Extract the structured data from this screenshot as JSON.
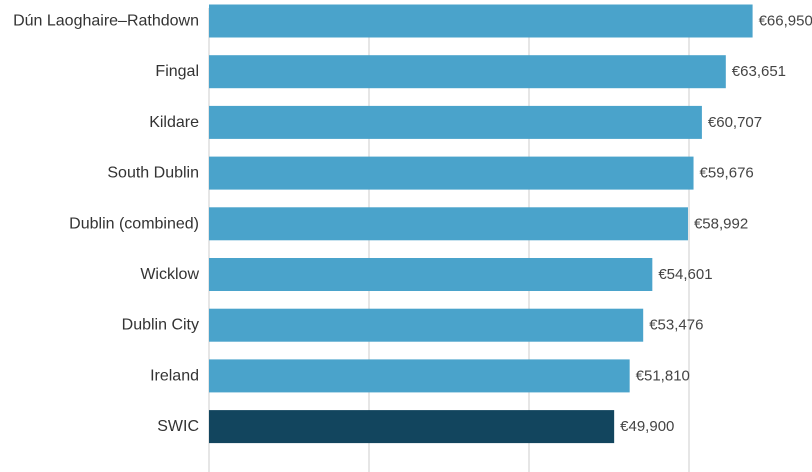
{
  "chart_data": {
    "type": "bar",
    "orientation": "horizontal",
    "categories": [
      "Dún Laoghaire–Rathdown",
      "Fingal",
      "Kildare",
      "South Dublin",
      "Dublin (combined)",
      "Wicklow",
      "Dublin City",
      "Ireland",
      "SWIC"
    ],
    "values": [
      66950,
      63651,
      60707,
      59676,
      58992,
      54601,
      53476,
      51810,
      49900
    ],
    "value_labels": [
      "€66,950",
      "€63,651",
      "€60,707",
      "€59,676",
      "€58,992",
      "€54,601",
      "€53,476",
      "€51,810",
      "€49,900"
    ],
    "title": "",
    "xlabel": "",
    "ylabel": "",
    "xlim": [
      0,
      67000
    ],
    "grid": true,
    "legend": "none",
    "colors": {
      "default_bar": "#4aa3cb",
      "highlight_bar": "#12455e"
    },
    "highlight_category": "SWIC"
  }
}
